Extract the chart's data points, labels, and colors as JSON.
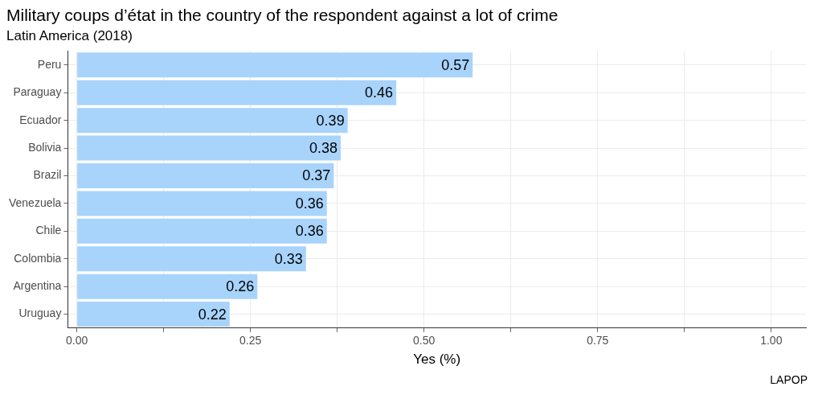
{
  "chart_data": {
    "type": "bar",
    "orientation": "horizontal",
    "title": "Military coups d’état in the country of the respondent against a lot of crime",
    "subtitle": "Latin America (2018)",
    "xlabel": "Yes (%)",
    "categories": [
      "Peru",
      "Paraguay",
      "Ecuador",
      "Bolivia",
      "Brazil",
      "Venezuela",
      "Chile",
      "Colombia",
      "Argentina",
      "Uruguay"
    ],
    "values": [
      0.57,
      0.46,
      0.39,
      0.38,
      0.37,
      0.36,
      0.36,
      0.33,
      0.26,
      0.22
    ],
    "color": "#a8d3fb",
    "data_labels": true,
    "xlim": [
      -0.013,
      1.05
    ],
    "xticks": [
      {
        "value": 0,
        "label": "0.00"
      },
      {
        "value": 0.125,
        "label": null
      },
      {
        "value": 0.25,
        "label": "0.25"
      },
      {
        "value": 0.375,
        "label": null
      },
      {
        "value": 0.5,
        "label": "0.50"
      },
      {
        "value": 0.625,
        "label": null
      },
      {
        "value": 0.75,
        "label": "0.75"
      },
      {
        "value": 0.875,
        "label": null
      },
      {
        "value": 1,
        "label": "1.00"
      }
    ],
    "grid": true,
    "legend": false,
    "annotations": [
      "LAPOP"
    ]
  }
}
